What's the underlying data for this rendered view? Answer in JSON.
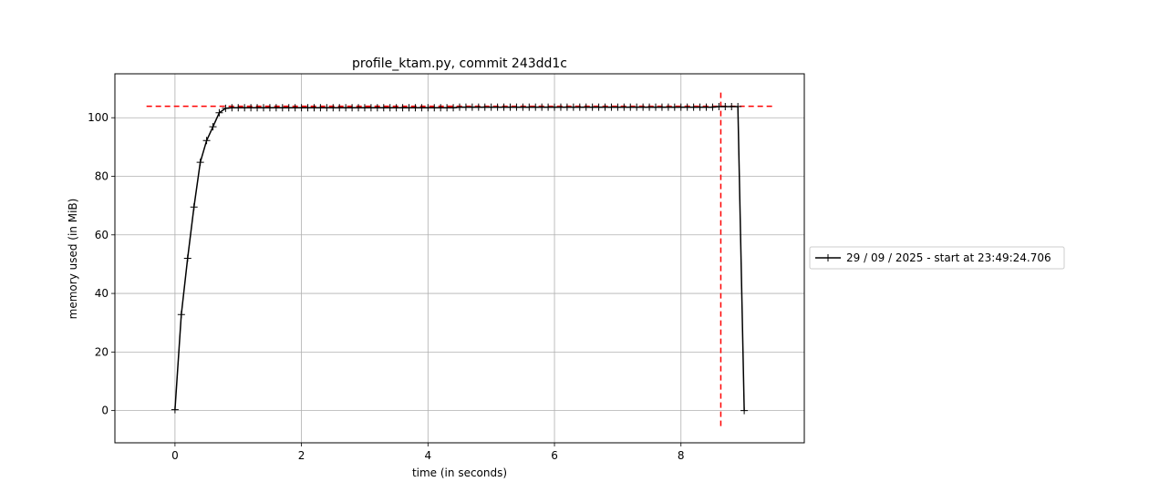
{
  "chart_data": {
    "type": "line",
    "title": "profile_ktam.py, commit 243dd1c",
    "xlabel": "time (in seconds)",
    "ylabel": "memory used (in MiB)",
    "xlim": [
      -0.95,
      9.95
    ],
    "ylim": [
      -11,
      115
    ],
    "xticks": [
      0,
      2,
      4,
      6,
      8
    ],
    "yticks": [
      0,
      20,
      40,
      60,
      80,
      100
    ],
    "grid": true,
    "legend_position": "right, outside plot",
    "series": [
      {
        "name": "29 / 09 / 2025 - start at 23:49:24.706",
        "color": "#000000",
        "marker": "plus",
        "x": [
          0,
          0.1,
          0.2,
          0.3,
          0.4,
          0.5,
          0.6,
          0.7,
          0.8,
          0.9,
          1.0,
          1.1,
          1.2,
          1.3,
          1.4,
          1.5,
          1.6,
          1.7,
          1.8,
          1.9,
          2.0,
          2.1,
          2.2,
          2.3,
          2.4,
          2.5,
          2.6,
          2.7,
          2.8,
          2.9,
          3.0,
          3.1,
          3.2,
          3.3,
          3.4,
          3.5,
          3.6,
          3.7,
          3.8,
          3.9,
          4.0,
          4.1,
          4.2,
          4.3,
          4.4,
          4.5,
          4.6,
          4.7,
          4.8,
          4.9,
          5.0,
          5.1,
          5.2,
          5.3,
          5.4,
          5.5,
          5.6,
          5.7,
          5.8,
          5.9,
          6.0,
          6.1,
          6.2,
          6.3,
          6.4,
          6.5,
          6.6,
          6.7,
          6.8,
          6.9,
          7.0,
          7.1,
          7.2,
          7.3,
          7.4,
          7.5,
          7.6,
          7.7,
          7.8,
          7.9,
          8.0,
          8.1,
          8.2,
          8.3,
          8.4,
          8.5,
          8.6,
          8.7,
          8.8,
          8.9,
          9.0
        ],
        "y": [
          0.3,
          32.8,
          52.0,
          69.5,
          84.8,
          92.2,
          96.9,
          101.7,
          103.2,
          103.4,
          103.4,
          103.4,
          103.4,
          103.4,
          103.4,
          103.4,
          103.4,
          103.4,
          103.4,
          103.4,
          103.4,
          103.4,
          103.4,
          103.4,
          103.4,
          103.4,
          103.4,
          103.4,
          103.4,
          103.4,
          103.4,
          103.4,
          103.4,
          103.4,
          103.4,
          103.4,
          103.4,
          103.4,
          103.4,
          103.4,
          103.4,
          103.4,
          103.4,
          103.4,
          103.4,
          103.6,
          103.6,
          103.6,
          103.6,
          103.6,
          103.6,
          103.6,
          103.6,
          103.6,
          103.6,
          103.6,
          103.6,
          103.6,
          103.6,
          103.6,
          103.6,
          103.6,
          103.6,
          103.6,
          103.6,
          103.6,
          103.6,
          103.6,
          103.6,
          103.6,
          103.6,
          103.6,
          103.6,
          103.6,
          103.6,
          103.6,
          103.6,
          103.6,
          103.6,
          103.6,
          103.6,
          103.6,
          103.6,
          103.6,
          103.6,
          103.6,
          103.8,
          103.8,
          103.8,
          103.8,
          0.0
        ]
      }
    ],
    "reference_lines": [
      {
        "orientation": "horizontal",
        "value": 103.9,
        "from": -0.45,
        "to": 9.45,
        "color": "#ff0000",
        "style": "dashed"
      },
      {
        "orientation": "vertical",
        "value": 8.63,
        "from": -5.3,
        "to": 109.5,
        "color": "#ff0000",
        "style": "dashed"
      }
    ]
  }
}
